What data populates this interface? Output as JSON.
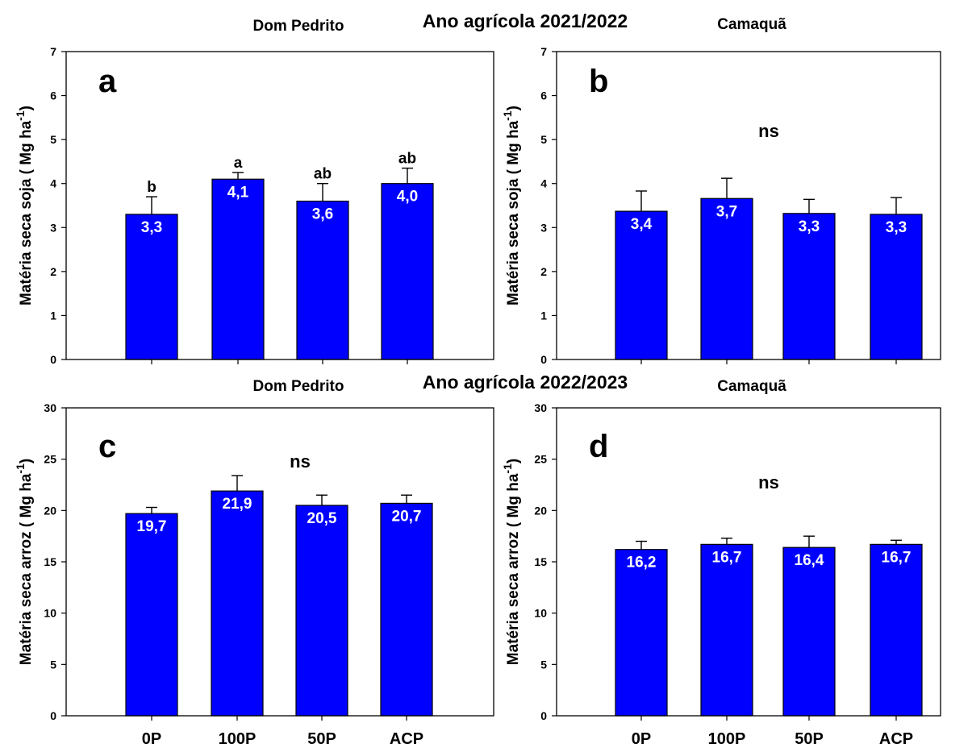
{
  "headers": [
    {
      "id": "row1-left",
      "text": "Dom Pedrito"
    },
    {
      "id": "row1-center",
      "text": "Ano agrícola 2021/2022"
    },
    {
      "id": "row1-right",
      "text": "Camaquã"
    },
    {
      "id": "row2-left",
      "text": "Dom Pedrito"
    },
    {
      "id": "row2-center",
      "text": "Ano agrícola 2022/2023"
    },
    {
      "id": "row2-right",
      "text": "Camaquã"
    }
  ],
  "colors": {
    "bar": "#0000ff",
    "bar_edge": "#000000",
    "value_label": "#ffffff"
  },
  "chart_data": [
    {
      "type": "bar",
      "panel_label": "a",
      "ylabel_main": "Matéria seca soja ( Mg ha",
      "ylabel_sup": "-1",
      "ylabel_end": ")",
      "categories": [
        "0P",
        "100P",
        "50P",
        "ACP"
      ],
      "values": [
        3.3,
        4.1,
        3.6,
        4.0
      ],
      "value_labels": [
        "3,3",
        "4,1",
        "3,6",
        "4,0"
      ],
      "error_tops": [
        3.7,
        4.25,
        4.0,
        4.35
      ],
      "significance": [
        "b",
        "a",
        "ab",
        "ab"
      ],
      "note": "",
      "ylim": [
        0,
        7
      ],
      "yticks": [
        0,
        1,
        2,
        3,
        4,
        5,
        6,
        7
      ],
      "show_xticklabels": false
    },
    {
      "type": "bar",
      "panel_label": "b",
      "ylabel_main": "Matéria seca soja ( Mg ha",
      "ylabel_sup": "-1",
      "ylabel_end": ")",
      "categories": [
        "0P",
        "100P",
        "50P",
        "ACP"
      ],
      "values": [
        3.37,
        3.66,
        3.32,
        3.3
      ],
      "value_labels": [
        "3,4",
        "3,7",
        "3,3",
        "3,3"
      ],
      "error_tops": [
        3.83,
        4.12,
        3.64,
        3.68
      ],
      "significance": [],
      "note": "ns",
      "ylim": [
        0,
        7
      ],
      "yticks": [
        0,
        1,
        2,
        3,
        4,
        5,
        6,
        7
      ],
      "show_xticklabels": false
    },
    {
      "type": "bar",
      "panel_label": "c",
      "ylabel_main": "Matéria seca arroz ( Mg ha",
      "ylabel_sup": "-1",
      "ylabel_end": ")",
      "categories": [
        "0P",
        "100P",
        "50P",
        "ACP"
      ],
      "values": [
        19.7,
        21.9,
        20.5,
        20.7
      ],
      "value_labels": [
        "19,7",
        "21,9",
        "20,5",
        "20,7"
      ],
      "error_tops": [
        20.3,
        23.4,
        21.5,
        21.5
      ],
      "significance": [],
      "note": "ns",
      "ylim": [
        0,
        30
      ],
      "yticks": [
        0,
        5,
        10,
        15,
        20,
        25,
        30
      ],
      "show_xticklabels": true
    },
    {
      "type": "bar",
      "panel_label": "d",
      "ylabel_main": "Matéria seca arroz ( Mg ha",
      "ylabel_sup": "-1",
      "ylabel_end": ")",
      "categories": [
        "0P",
        "100P",
        "50P",
        "ACP"
      ],
      "values": [
        16.2,
        16.7,
        16.4,
        16.7
      ],
      "value_labels": [
        "16,2",
        "16,7",
        "16,4",
        "16,7"
      ],
      "error_tops": [
        17.0,
        17.3,
        17.5,
        17.1
      ],
      "significance": [],
      "note": "ns",
      "ylim": [
        0,
        30
      ],
      "yticks": [
        0,
        5,
        10,
        15,
        20,
        25,
        30
      ],
      "show_xticklabels": true
    }
  ]
}
